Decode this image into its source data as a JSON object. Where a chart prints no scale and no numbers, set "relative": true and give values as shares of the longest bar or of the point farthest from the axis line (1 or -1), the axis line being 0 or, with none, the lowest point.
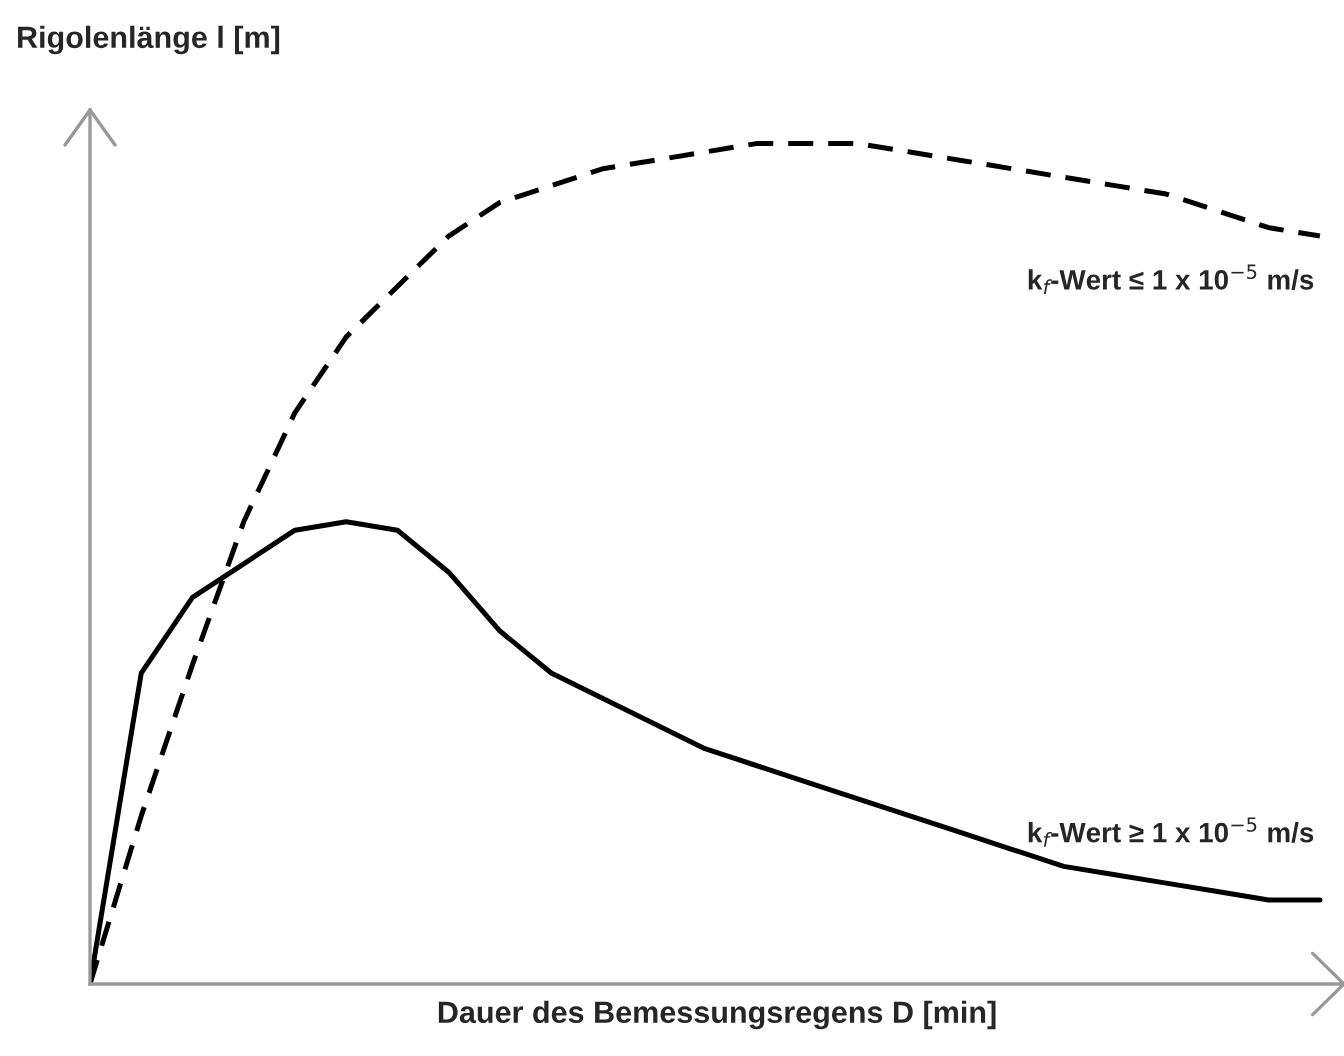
{
  "chart_data": {
    "type": "line",
    "relative": true,
    "xlabel": "Dauer des Bemessungsregens D [min]",
    "ylabel": "Rigolenlänge l [m]",
    "tick_labels": false,
    "legend": false,
    "marker": "none",
    "categories": [
      null,
      null,
      null,
      null,
      null,
      null,
      null,
      null,
      null,
      null,
      null,
      null,
      null,
      null,
      null,
      null,
      null,
      null,
      null,
      null,
      null,
      null,
      null,
      null,
      null
    ],
    "series": [
      {
        "name": "k$_{f}$-Wert ≤ 1 x 10$^{−5}$ m/s",
        "color": "#000000",
        "line_style": "dashed",
        "values": [
          0,
          0.2,
          0.38,
          0.55,
          0.68,
          0.77,
          0.83,
          0.89,
          0.93,
          0.95,
          0.97,
          0.98,
          0.99,
          1,
          1,
          1,
          0.99,
          0.98,
          0.97,
          0.96,
          0.95,
          0.94,
          0.92,
          0.9,
          0.89
        ]
      },
      {
        "name": "k$_{f}$-Wert ≥ 1 x 10$^{−5}$ m/s",
        "color": "#000000",
        "line_style": "solid",
        "values": [
          0,
          0.37,
          0.46,
          0.5,
          0.54,
          0.55,
          0.54,
          0.49,
          0.42,
          0.37,
          0.34,
          0.31,
          0.28,
          0.26,
          0.24,
          0.22,
          0.2,
          0.18,
          0.16,
          0.14,
          0.13,
          0.12,
          0.11,
          0.1,
          0.1
        ]
      }
    ]
  }
}
